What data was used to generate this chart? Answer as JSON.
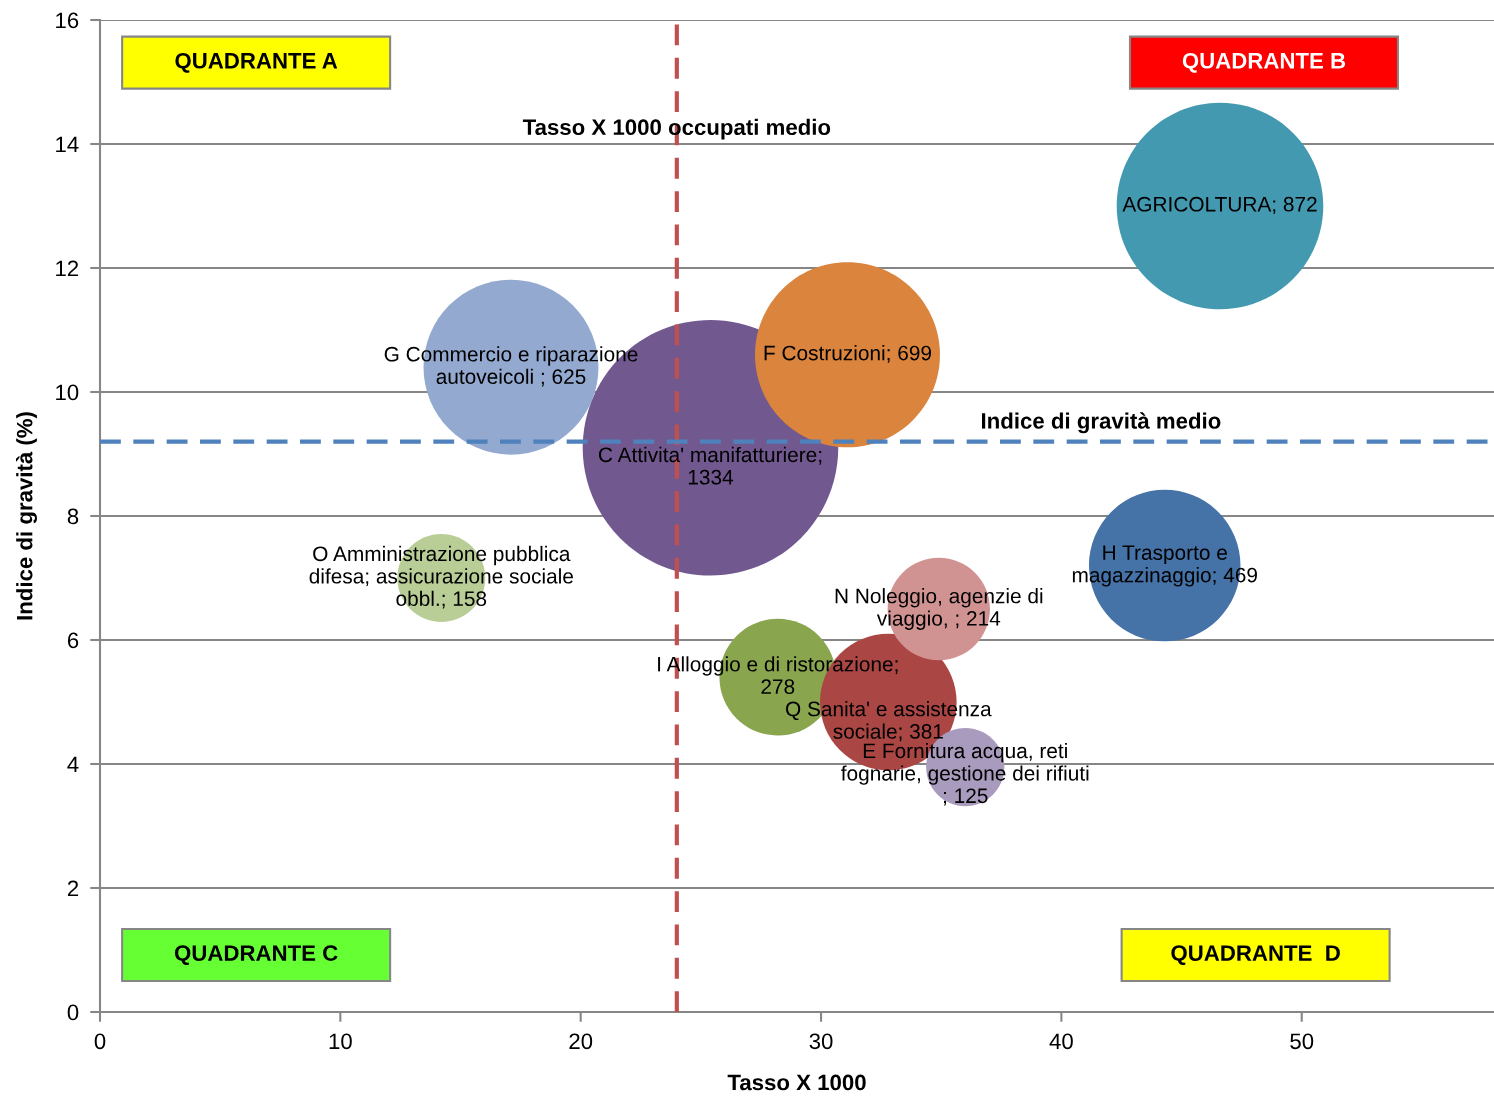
{
  "chart_data": {
    "type": "bubble",
    "x": [
      17.1,
      25.4,
      31.1,
      46.6,
      14.2,
      44.3,
      28.2,
      32.8,
      34.9,
      36.0
    ],
    "values": [
      10.4,
      9.1,
      10.6,
      13.0,
      7.0,
      7.2,
      5.4,
      5.0,
      6.5,
      3.95
    ],
    "sizes": [
      625,
      1334,
      699,
      872,
      158,
      469,
      278,
      381,
      214,
      125
    ],
    "colors": [
      "#93a9cf",
      "#71588f",
      "#db843d",
      "#4399b0",
      "#b9cd96",
      "#4572a7",
      "#89a54e",
      "#aa4643",
      "#d19392",
      "#a99bbd"
    ],
    "value_labels": [
      "G Commercio e riparazione\nautoveicoli ; 625",
      "C Attivita' manifatturiere;\n1334",
      "F Costruzioni; 699",
      "AGRICOLTURA; 872",
      "O Amministrazione pubblica\ndifesa; assicurazione sociale\nobbl.; 158",
      "H Trasporto e\nmagazzinaggio; 469",
      "I Alloggio e di ristorazione;\n278",
      "Q Sanita' e assistenza\nsociale; 381",
      "N Noleggio, agenzie di\nviaggio, ; 214",
      "E Fornitura acqua, reti\nfognarie, gestione dei rifiuti\n; 125"
    ],
    "xlabel": "Tasso X 1000",
    "ylabel": "Indice di gravità (%)",
    "xlim": [
      0,
      58
    ],
    "ylim": [
      0,
      16
    ],
    "xticks": [
      0,
      10,
      20,
      30,
      40,
      50
    ],
    "yticks": [
      0,
      2,
      4,
      6,
      8,
      10,
      12,
      14,
      16
    ],
    "grid": "y",
    "ref_lines": [
      {
        "axis": "x",
        "value": 24,
        "label": "Tasso X 1000 occupati medio",
        "color": "#c0504d",
        "line_style": "dashed"
      },
      {
        "axis": "y",
        "value": 9.2,
        "label": "Indice di gravità medio",
        "color": "#4f81bd",
        "line_style": "dashed"
      }
    ],
    "annotations": [
      "QUADRANTE A",
      "QUADRANTE B",
      "QUADRANTE C",
      "QUADRANTE  D"
    ]
  }
}
